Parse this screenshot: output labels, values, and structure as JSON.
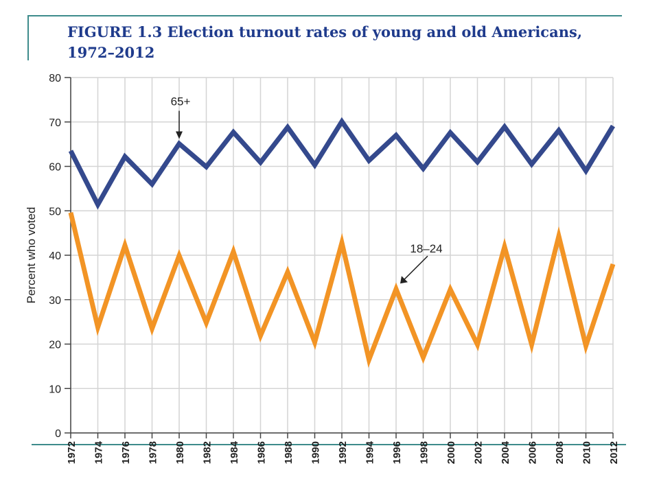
{
  "figure": {
    "title": "FIGURE 1.3   Election turnout rates of young and old Americans, 1972–2012"
  },
  "chart_data": {
    "type": "line",
    "title": "FIGURE 1.3   Election turnout rates of young and old Americans, 1972–2012",
    "xlabel": "",
    "ylabel": "Percent who voted",
    "x": [
      1972,
      1974,
      1976,
      1978,
      1980,
      1982,
      1984,
      1986,
      1988,
      1990,
      1992,
      1994,
      1996,
      1998,
      2000,
      2002,
      2004,
      2006,
      2008,
      2010,
      2012
    ],
    "x_tick_labels": [
      "1972",
      "1974",
      "1976",
      "1978",
      "1980",
      "1982",
      "1984",
      "1986",
      "1988",
      "1990",
      "1992",
      "1994",
      "1996",
      "1998",
      "2000",
      "2002",
      "2004",
      "2006",
      "2008",
      "2010",
      "2012"
    ],
    "ylim": [
      0,
      80
    ],
    "y_ticks": [
      0,
      10,
      20,
      30,
      40,
      50,
      60,
      70,
      80
    ],
    "grid": true,
    "series": [
      {
        "name": "65+",
        "color": "#34498d",
        "values": [
          63.5,
          51.4,
          62.2,
          56.0,
          65.1,
          59.9,
          67.7,
          60.9,
          68.8,
          60.3,
          70.1,
          61.3,
          67.0,
          59.5,
          67.6,
          61.0,
          68.9,
          60.5,
          68.1,
          59.0,
          69.1
        ]
      },
      {
        "name": "18–24",
        "color": "#f29425",
        "values": [
          49.6,
          23.8,
          42.2,
          23.5,
          39.9,
          24.8,
          40.8,
          21.9,
          36.2,
          20.4,
          42.8,
          16.5,
          32.4,
          17.0,
          32.3,
          19.9,
          41.9,
          19.9,
          44.3,
          19.6,
          38.0
        ]
      }
    ],
    "annotations": [
      {
        "label": "65+",
        "x": 1980,
        "y": 65.1
      },
      {
        "label": "18–24",
        "x": 1996,
        "y": 32.4
      }
    ]
  }
}
